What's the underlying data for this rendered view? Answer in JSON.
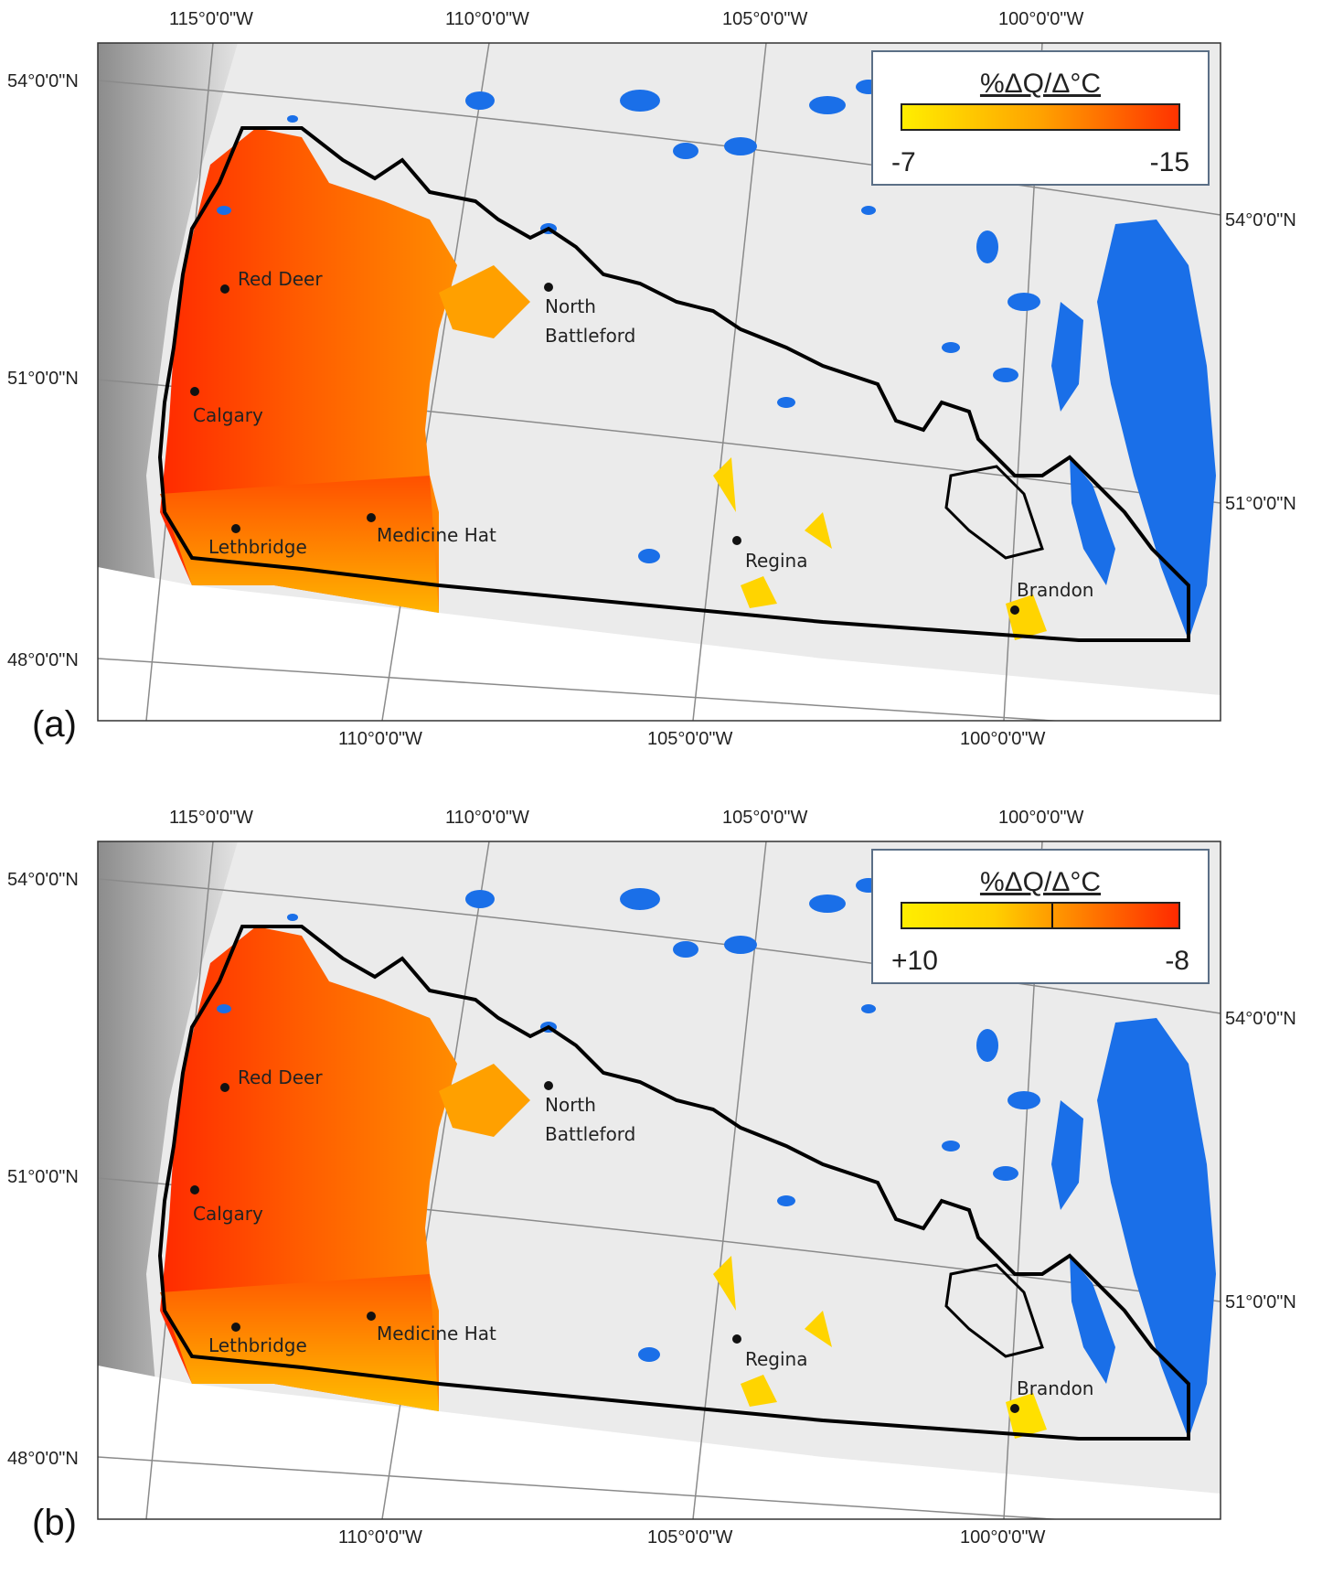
{
  "panels": [
    {
      "label": "(a)",
      "legend": {
        "title": "%ΔQ/Δ°C",
        "min_label": "-7",
        "max_label": "-15",
        "ramp_colors": [
          "#ffee00",
          "#ffa200",
          "#ff3300"
        ],
        "midline": false
      }
    },
    {
      "label": "(b)",
      "legend": {
        "title": "%ΔQ/Δ°C",
        "min_label": "+10",
        "max_label": "-8",
        "ramp_colors": [
          "#ffee00",
          "#ffd000",
          "#ff7b00",
          "#ff2a00"
        ],
        "midline": true
      }
    }
  ],
  "graticule": {
    "top_longitudes": [
      "115°0'0\"W",
      "110°0'0\"W",
      "105°0'0\"W",
      "100°0'0\"W"
    ],
    "bottom_longitudes": [
      "110°0'0\"W",
      "105°0'0\"W",
      "100°0'0\"W"
    ],
    "left_latitudes": [
      "54°0'0\"N",
      "51°0'0\"N",
      "48°0'0\"N"
    ],
    "right_latitudes": [
      "54°0'0\"N",
      "51°0'0\"N"
    ]
  },
  "cities": [
    {
      "name": "Red Deer"
    },
    {
      "name": "Calgary"
    },
    {
      "name": "Lethbridge"
    },
    {
      "name": "Medicine Hat"
    },
    {
      "name": "North\nBattleford"
    },
    {
      "name": "Regina"
    },
    {
      "name": "Brandon"
    }
  ],
  "colors": {
    "water": "#1a6fe8",
    "land": "#e6e6e6",
    "mountains": "#9a9a9a",
    "boundary": "#000000",
    "graticule": "#888888"
  }
}
